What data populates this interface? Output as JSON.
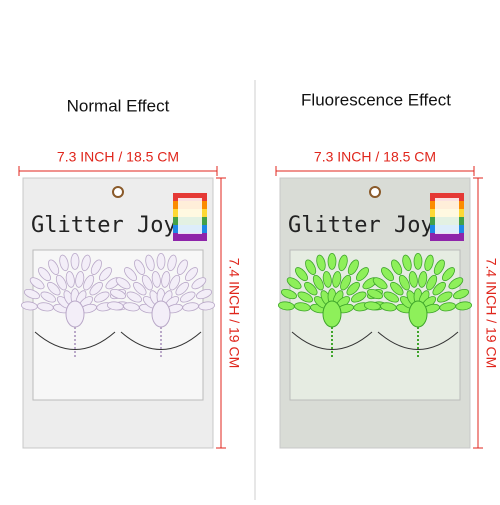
{
  "panels": [
    {
      "heading": "Normal Effect",
      "width_label": "7.3 INCH / 18.5 CM",
      "height_label": "7.4 INCH / 19 CM",
      "brand": "Glitter Joy"
    },
    {
      "heading": "Fluorescence Effect",
      "width_label": "7.3 INCH / 18.5 CM",
      "height_label": "7.4 INCH / 19 CM",
      "brand": "Glitter Joy"
    }
  ]
}
